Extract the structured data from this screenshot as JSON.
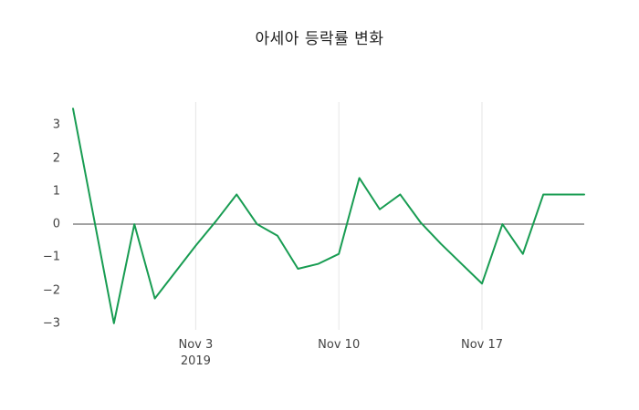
{
  "chart_data": {
    "type": "line",
    "title": "아세아 등락률 변화",
    "x": [
      0,
      1,
      2,
      3,
      4,
      5,
      6,
      7,
      8,
      9,
      10,
      11,
      12,
      13,
      14,
      15,
      16,
      17,
      18,
      19,
      20,
      21,
      22,
      23,
      24,
      25
    ],
    "values": [
      3.5,
      0.25,
      -3.0,
      0.0,
      -2.25,
      -1.45,
      -0.65,
      0.1,
      0.9,
      0.0,
      -0.35,
      -1.35,
      -1.2,
      -0.9,
      1.4,
      0.45,
      0.9,
      0.05,
      -0.6,
      -1.2,
      -1.8,
      0.0,
      -0.9,
      0.9,
      0.9,
      0.9
    ],
    "xlabel": "",
    "ylabel": "",
    "ylim": [
      -3.2,
      3.7
    ],
    "y_ticks": [
      {
        "label": "−3",
        "value": -3
      },
      {
        "label": "−2",
        "value": -2
      },
      {
        "label": "−1",
        "value": -1
      },
      {
        "label": "0",
        "value": 0
      },
      {
        "label": "1",
        "value": 1
      },
      {
        "label": "2",
        "value": 2
      },
      {
        "label": "3",
        "value": 3
      }
    ],
    "x_ticks": [
      {
        "label": "Nov 3",
        "sublabel": "2019",
        "index": 6
      },
      {
        "label": "Nov 10",
        "sublabel": "",
        "index": 13
      },
      {
        "label": "Nov 17",
        "sublabel": "",
        "index": 20
      }
    ],
    "grid": "vertical-only",
    "zero_line": true,
    "legend_position": "none"
  },
  "colors": {
    "line": "#189c52",
    "grid": "#e6e6e6",
    "zero_line": "#444444",
    "tick_text": "#444444",
    "title_text": "#222222",
    "background": "#ffffff"
  }
}
